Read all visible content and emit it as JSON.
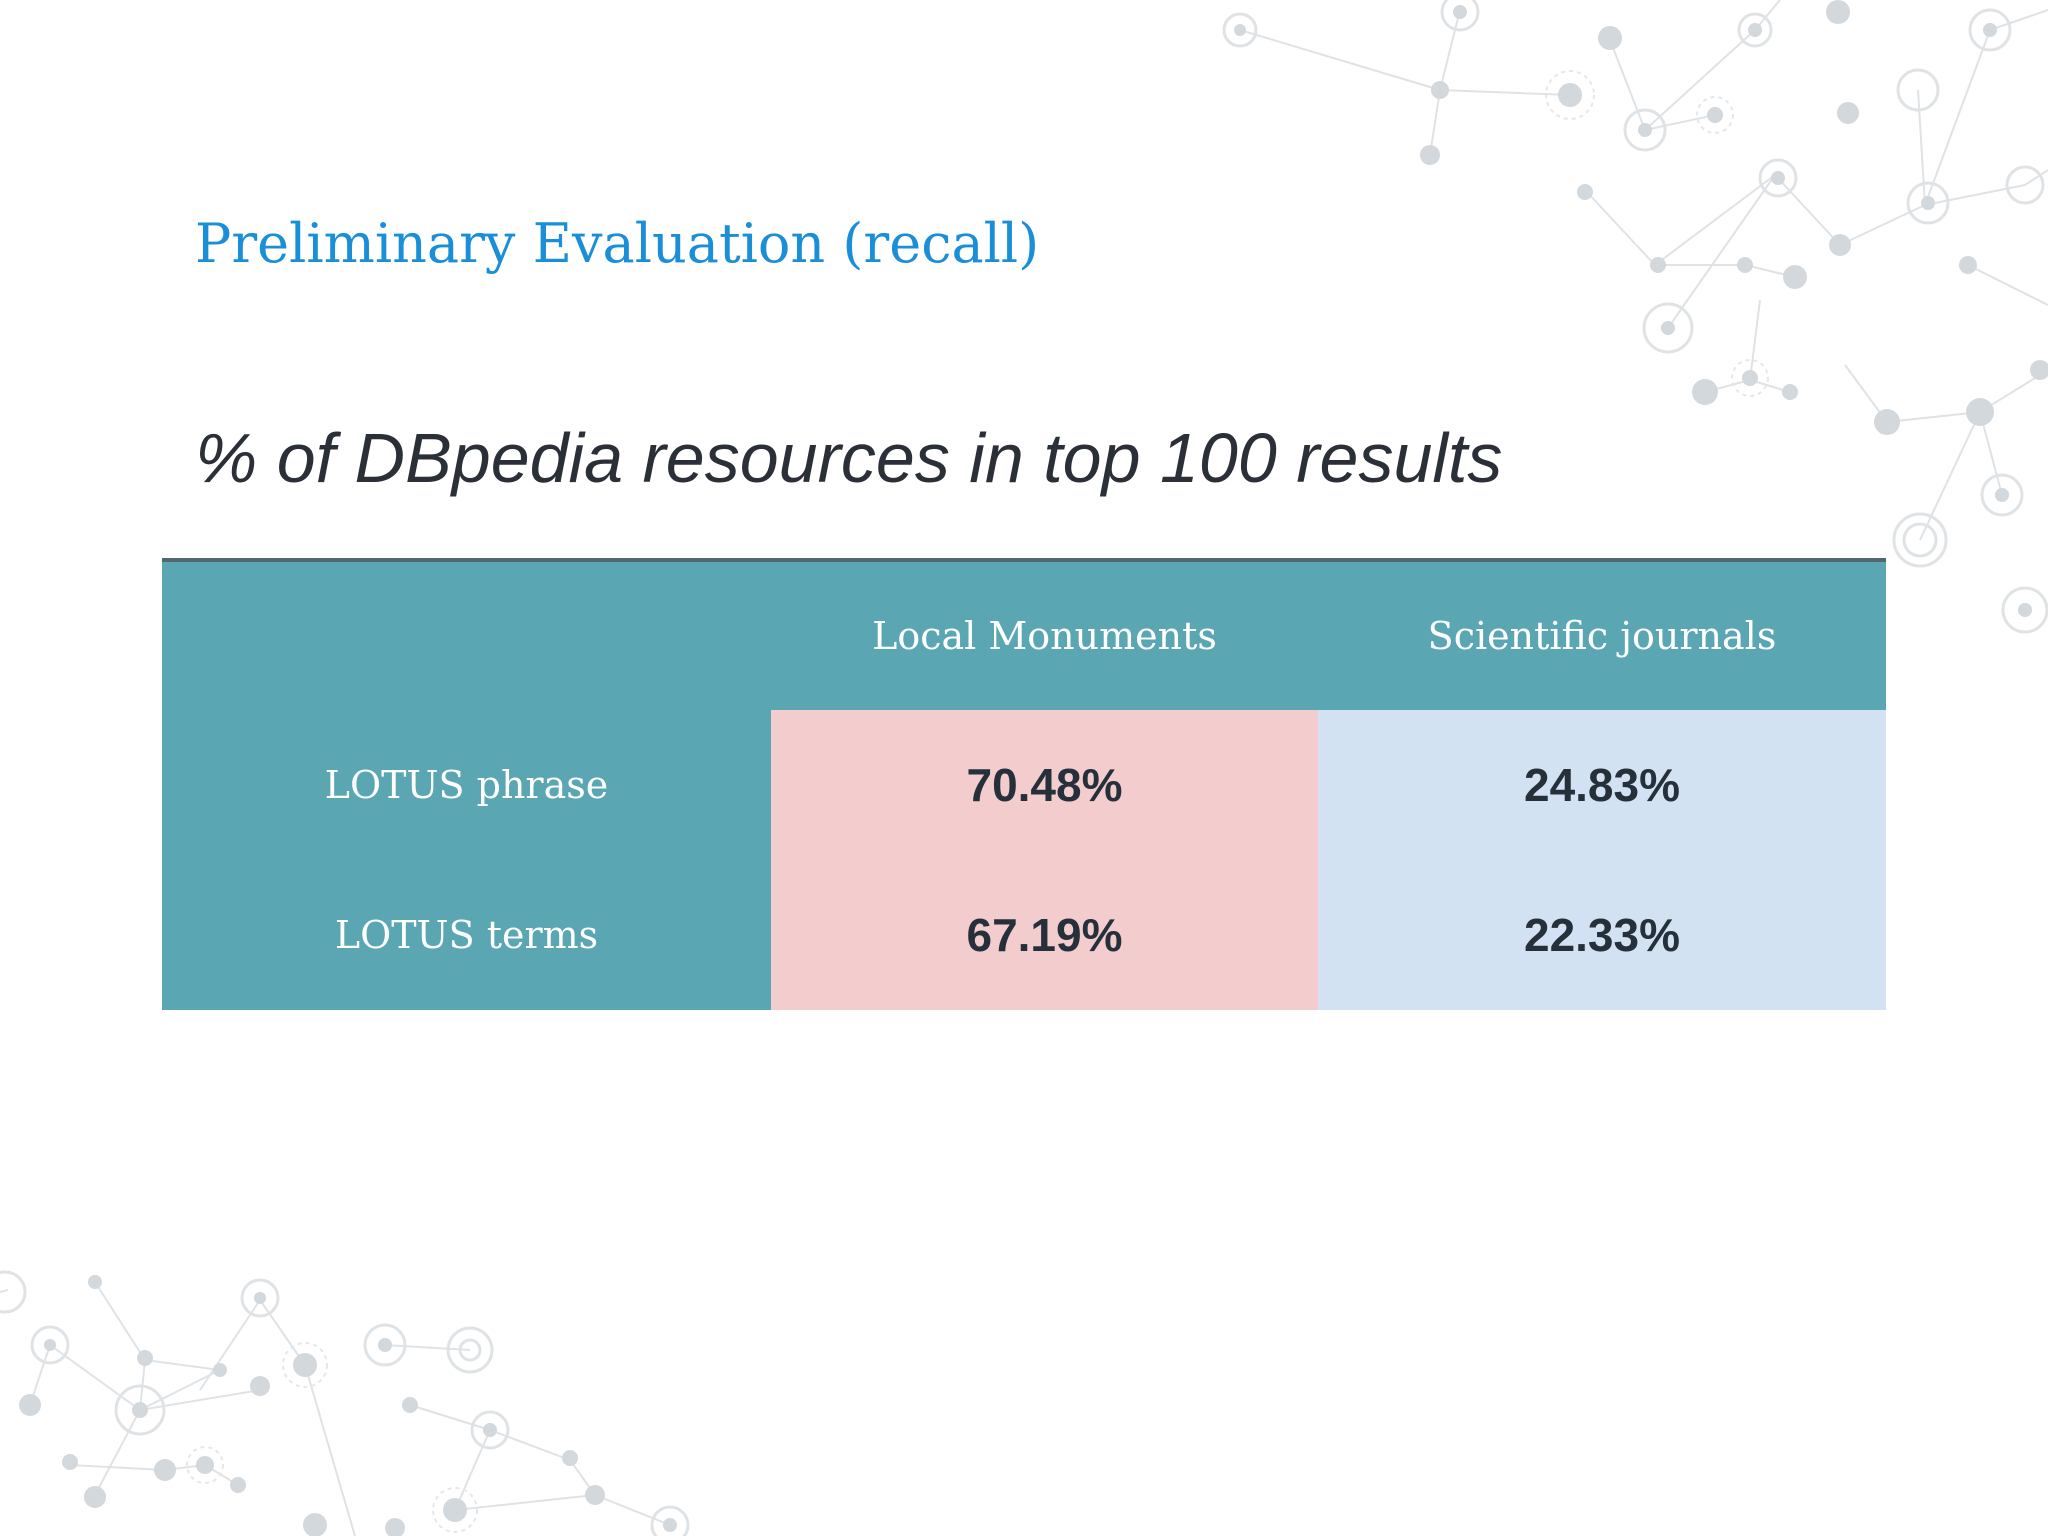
{
  "slide": {
    "title": "Preliminary Evaluation (recall)",
    "subtitle": "% of DBpedia resources in top 100 results"
  },
  "table": {
    "columns": [
      "",
      "Local Monuments",
      "Scientific journals"
    ],
    "rows": [
      {
        "label": "LOTUS phrase",
        "values": [
          "70.48%",
          "24.83%"
        ]
      },
      {
        "label": "LOTUS terms",
        "values": [
          "67.19%",
          "22.33%"
        ]
      }
    ]
  },
  "colors": {
    "title": "#1a8fd8",
    "header_bg": "#5aa6b3",
    "local_monuments_bg": "#f3cccd",
    "scientific_journals_bg": "#d2e2f3",
    "table_top_border": "#53676f"
  },
  "decoration": {
    "icon": "network-graph-pattern"
  }
}
